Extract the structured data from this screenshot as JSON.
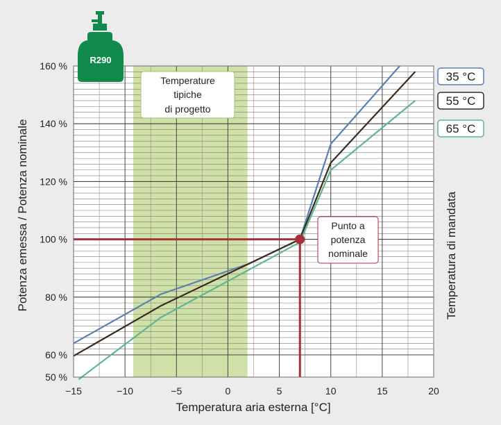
{
  "chart_data": {
    "type": "line",
    "xlabel": "Temperatura aria esterna [°C]",
    "ylabel": "Potenza emessa / Potenza nominale",
    "right_label": "Temperatura di mandata",
    "xlim": [
      -15,
      20
    ],
    "ylim": [
      50,
      160
    ],
    "x_ticks": [
      -15,
      -10,
      -5,
      0,
      5,
      10,
      15,
      20
    ],
    "y_ticks": [
      {
        "value": 50,
        "label": "50 %"
      },
      {
        "value": 60,
        "label": "60 %"
      },
      {
        "value": 80,
        "label": "80 %"
      },
      {
        "value": 100,
        "label": "100 %"
      },
      {
        "value": 120,
        "label": "120 %"
      },
      {
        "value": 140,
        "label": "140 %"
      },
      {
        "value": 160,
        "label": "160 %"
      }
    ],
    "grid": true,
    "series": [
      {
        "name": "35 °C",
        "color": "#5a7fb0",
        "x": [
          -15,
          -6.5,
          2,
          7,
          10,
          16.7
        ],
        "y": [
          64,
          81,
          91.5,
          100,
          133,
          160
        ]
      },
      {
        "name": "55 °C",
        "color": "#3a2a1e",
        "x": [
          -15,
          -6.5,
          7,
          10,
          18.2
        ],
        "y": [
          59.5,
          77,
          100,
          126.5,
          158
        ]
      },
      {
        "name": "65 °C",
        "color": "#5fb592",
        "x": [
          -14.5,
          -6.5,
          7,
          10,
          18.2
        ],
        "y": [
          49,
          73,
          99,
          124,
          148
        ]
      }
    ],
    "shaded_region": {
      "x_from": -9.2,
      "x_to": 1.9,
      "label_lines": [
        "Temperature",
        "tipiche",
        "di progetto"
      ]
    },
    "nominal_point": {
      "x": 7,
      "y": 100,
      "color": "#a8303a",
      "label_lines": [
        "Punto a",
        "potenza",
        "nominale"
      ]
    },
    "legend_position": "right"
  },
  "logo": {
    "text": "R290",
    "color": "#0f8a4a"
  }
}
